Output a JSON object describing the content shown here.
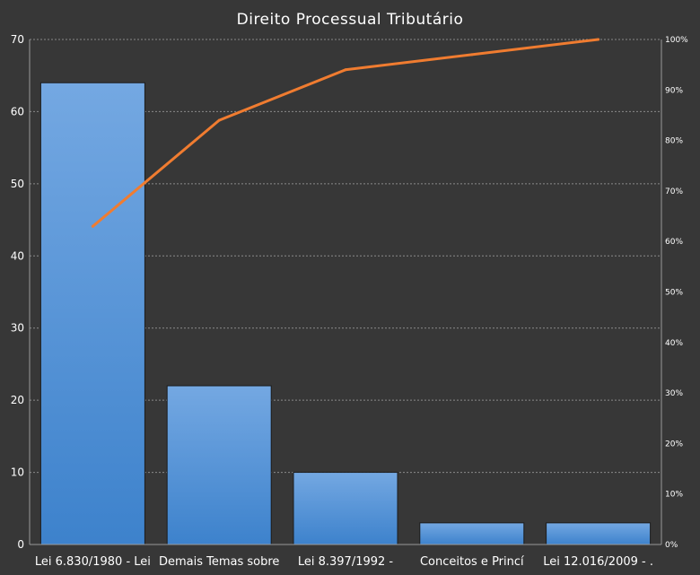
{
  "chart_data": {
    "type": "bar",
    "title": "Direito Processual Tributário",
    "categories": [
      "Lei 6.830/1980 - Lei",
      "Demais Temas sobre",
      "Lei 8.397/1992 -",
      "Conceitos e Princí",
      "Lei 12.016/2009 - ."
    ],
    "series": [
      {
        "type": "bar",
        "values": [
          64,
          22,
          10,
          3,
          3
        ]
      },
      {
        "type": "line",
        "axis": "right",
        "values": [
          63,
          84,
          94,
          97,
          100
        ]
      }
    ],
    "ylim": [
      0,
      70
    ],
    "yticks": [
      "0",
      "10",
      "20",
      "30",
      "40",
      "50",
      "60",
      "70"
    ],
    "y2lim": [
      0,
      100
    ],
    "y2ticks": [
      "0%",
      "10%",
      "20%",
      "30%",
      "40%",
      "50%",
      "60%",
      "70%",
      "80%",
      "90%",
      "100%"
    ],
    "grid": true,
    "colors": {
      "background": "#373737",
      "bar_top": "#74a8e2",
      "bar_bottom": "#3d82cc",
      "line": "#f07c30"
    }
  }
}
